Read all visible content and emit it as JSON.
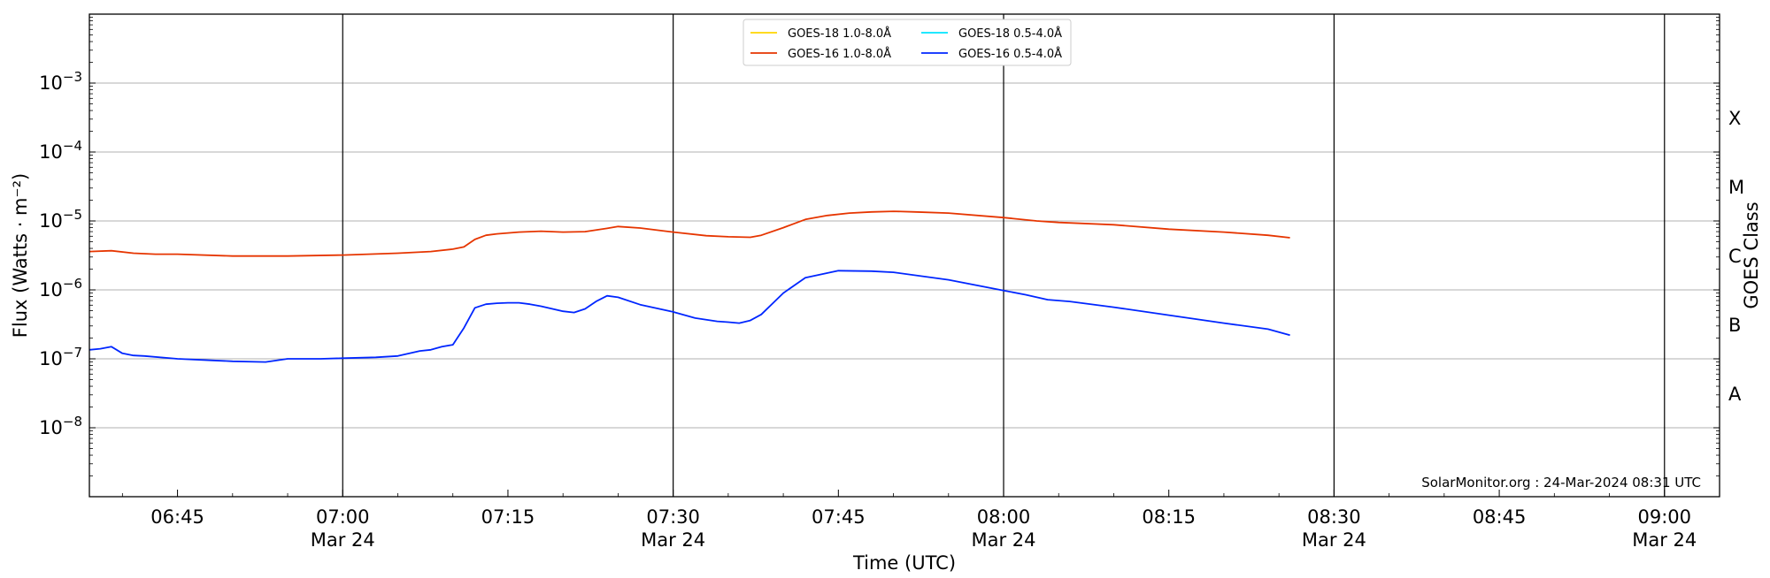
{
  "chart_data": {
    "type": "line",
    "xlabel": "Time (UTC)",
    "ylabel": "Flux (Watts · m⁻²)",
    "y2label": "GOES Class",
    "y_scale": "log",
    "ylim": [
      1e-09,
      0.01
    ],
    "xlim": [
      "06:37",
      "09:05"
    ],
    "grid": "horizontal at decades",
    "legend_position": "top-center",
    "watermark": "SolarMonitor.org : 24-Mar-2024 08:31 UTC",
    "x_ticks": [
      {
        "time": "06:45",
        "label": "06:45",
        "date": ""
      },
      {
        "time": "07:00",
        "label": "07:00",
        "date": "Mar 24"
      },
      {
        "time": "07:15",
        "label": "07:15",
        "date": ""
      },
      {
        "time": "07:30",
        "label": "07:30",
        "date": "Mar 24"
      },
      {
        "time": "07:45",
        "label": "07:45",
        "date": ""
      },
      {
        "time": "08:00",
        "label": "08:00",
        "date": "Mar 24"
      },
      {
        "time": "08:15",
        "label": "08:15",
        "date": ""
      },
      {
        "time": "08:30",
        "label": "08:30",
        "date": "Mar 24"
      },
      {
        "time": "08:45",
        "label": "08:45",
        "date": ""
      },
      {
        "time": "09:00",
        "label": "09:00",
        "date": "Mar 24"
      }
    ],
    "vertical_lines": [
      "07:00",
      "07:30",
      "08:00",
      "08:30",
      "09:00"
    ],
    "y_ticks": [
      {
        "exp": -8,
        "base": "10",
        "sup": "−8"
      },
      {
        "exp": -7,
        "base": "10",
        "sup": "−7"
      },
      {
        "exp": -6,
        "base": "10",
        "sup": "−6"
      },
      {
        "exp": -5,
        "base": "10",
        "sup": "−5"
      },
      {
        "exp": -4,
        "base": "10",
        "sup": "−4"
      },
      {
        "exp": -3,
        "base": "10",
        "sup": "−3"
      }
    ],
    "goes_classes": [
      {
        "label": "A",
        "exp": -7.5
      },
      {
        "label": "B",
        "exp": -6.5
      },
      {
        "label": "C",
        "exp": -5.5
      },
      {
        "label": "M",
        "exp": -4.5
      },
      {
        "label": "X",
        "exp": -3.5
      }
    ],
    "series": [
      {
        "name": "GOES-18 1.0-8.0Å",
        "color": "#ffd400",
        "x": [],
        "y": []
      },
      {
        "name": "GOES-16 1.0-8.0Å",
        "color": "#e63500",
        "x": [
          "06:37",
          "06:39",
          "06:41",
          "06:43",
          "06:45",
          "06:50",
          "06:55",
          "07:00",
          "07:05",
          "07:08",
          "07:10",
          "07:11",
          "07:12",
          "07:13",
          "07:14",
          "07:16",
          "07:18",
          "07:20",
          "07:22",
          "07:24",
          "07:25",
          "07:27",
          "07:30",
          "07:33",
          "07:35",
          "07:37",
          "07:38",
          "07:40",
          "07:42",
          "07:44",
          "07:46",
          "07:48",
          "07:50",
          "07:52",
          "07:55",
          "08:00",
          "08:03",
          "08:05",
          "08:10",
          "08:15",
          "08:20",
          "08:24",
          "08:26"
        ],
        "y": [
          3.6e-06,
          3.7e-06,
          3.4e-06,
          3.3e-06,
          3.3e-06,
          3.1e-06,
          3.1e-06,
          3.2e-06,
          3.4e-06,
          3.6e-06,
          3.9e-06,
          4.2e-06,
          5.4e-06,
          6.2e-06,
          6.5e-06,
          6.9e-06,
          7.1e-06,
          6.9e-06,
          7e-06,
          7.8e-06,
          8.3e-06,
          7.9e-06,
          6.9e-06,
          6.1e-06,
          5.9e-06,
          5.8e-06,
          6.2e-06,
          8e-06,
          1.05e-05,
          1.2e-05,
          1.3e-05,
          1.35e-05,
          1.38e-05,
          1.35e-05,
          1.3e-05,
          1.12e-05,
          1e-05,
          9.5e-06,
          8.8e-06,
          7.6e-06,
          6.9e-06,
          6.2e-06,
          5.7e-06
        ]
      },
      {
        "name": "GOES-18 0.5-4.0Å",
        "color": "#00e5ff",
        "x": [],
        "y": []
      },
      {
        "name": "GOES-16 0.5-4.0Å",
        "color": "#0026ff",
        "x": [
          "06:37",
          "06:38",
          "06:39",
          "06:40",
          "06:41",
          "06:42",
          "06:45",
          "06:48",
          "06:50",
          "06:53",
          "06:55",
          "06:58",
          "07:00",
          "07:03",
          "07:05",
          "07:07",
          "07:08",
          "07:09",
          "07:10",
          "07:11",
          "07:12",
          "07:13",
          "07:14",
          "07:15",
          "07:16",
          "07:17",
          "07:18",
          "07:20",
          "07:21",
          "07:22",
          "07:23",
          "07:24",
          "07:25",
          "07:27",
          "07:30",
          "07:32",
          "07:34",
          "07:35",
          "07:36",
          "07:37",
          "07:38",
          "07:40",
          "07:42",
          "07:45",
          "07:48",
          "07:50",
          "07:55",
          "08:00",
          "08:02",
          "08:04",
          "08:06",
          "08:10",
          "08:15",
          "08:20",
          "08:24",
          "08:26"
        ],
        "y": [
          1.35e-07,
          1.4e-07,
          1.5e-07,
          1.2e-07,
          1.12e-07,
          1.1e-07,
          1e-07,
          9.5e-08,
          9.2e-08,
          9e-08,
          1e-07,
          1e-07,
          1.02e-07,
          1.05e-07,
          1.1e-07,
          1.3e-07,
          1.35e-07,
          1.5e-07,
          1.6e-07,
          2.8e-07,
          5.5e-07,
          6.2e-07,
          6.4e-07,
          6.5e-07,
          6.5e-07,
          6.2e-07,
          5.8e-07,
          4.9e-07,
          4.7e-07,
          5.3e-07,
          6.8e-07,
          8.2e-07,
          7.8e-07,
          6.1e-07,
          4.8e-07,
          3.9e-07,
          3.5e-07,
          3.4e-07,
          3.3e-07,
          3.6e-07,
          4.4e-07,
          9e-07,
          1.5e-06,
          1.9e-06,
          1.87e-06,
          1.8e-06,
          1.4e-06,
          9.8e-07,
          8.5e-07,
          7.2e-07,
          6.8e-07,
          5.6e-07,
          4.3e-07,
          3.3e-07,
          2.7e-07,
          2.2e-07
        ]
      }
    ]
  }
}
